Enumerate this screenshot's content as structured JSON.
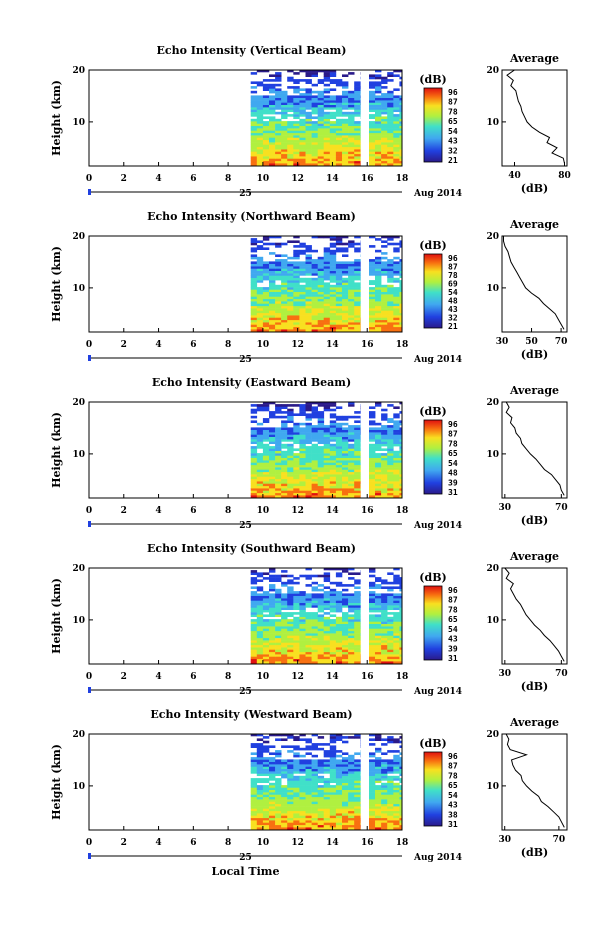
{
  "chart_data": [
    {
      "type": "heatmap",
      "title": "Echo Intensity (Vertical Beam)",
      "ylabel": "Height (km)",
      "xticks": [
        0,
        2,
        4,
        6,
        8,
        10,
        12,
        14,
        16,
        18
      ],
      "yticks": [
        10,
        20
      ],
      "xlim": [
        0,
        18
      ],
      "ylim": [
        1.5,
        20
      ],
      "date_day": "25",
      "date_label": "Aug 2014",
      "colorbar": {
        "label": "(dB)",
        "ticks": [
          96,
          87,
          78,
          65,
          54,
          43,
          32,
          21
        ]
      },
      "avg": {
        "title": "Average",
        "xlabel": "(dB)",
        "xticks": [
          40,
          80
        ],
        "xlim": [
          30,
          82
        ],
        "yticks": [
          10,
          20
        ],
        "profile": [
          [
            80,
            2
          ],
          [
            79,
            3
          ],
          [
            70,
            4
          ],
          [
            74,
            5
          ],
          [
            66,
            6
          ],
          [
            68,
            7
          ],
          [
            60,
            8
          ],
          [
            54,
            9
          ],
          [
            50,
            10
          ],
          [
            48,
            11
          ],
          [
            46,
            12
          ],
          [
            45,
            13
          ],
          [
            43,
            14
          ],
          [
            42,
            15
          ],
          [
            41,
            16
          ],
          [
            37,
            17
          ],
          [
            39,
            18
          ],
          [
            34,
            19
          ],
          [
            40,
            20
          ]
        ]
      }
    },
    {
      "type": "heatmap",
      "title": "Echo Intensity (Northward Beam)",
      "ylabel": "Height (km)",
      "xticks": [
        0,
        2,
        4,
        6,
        8,
        10,
        12,
        14,
        16,
        18
      ],
      "yticks": [
        10,
        20
      ],
      "xlim": [
        0,
        18
      ],
      "ylim": [
        1.5,
        20
      ],
      "date_day": "25",
      "date_label": "Aug 2014",
      "colorbar": {
        "label": "(dB)",
        "ticks": [
          96,
          87,
          78,
          69,
          54,
          48,
          43,
          32,
          21
        ]
      },
      "avg": {
        "title": "Average",
        "xlabel": "(dB)",
        "xticks": [
          30,
          50,
          70
        ],
        "xlim": [
          30,
          74
        ],
        "yticks": [
          10,
          20
        ],
        "profile": [
          [
            72,
            2
          ],
          [
            70,
            3
          ],
          [
            68,
            4
          ],
          [
            66,
            5
          ],
          [
            62,
            6
          ],
          [
            58,
            7
          ],
          [
            55,
            8
          ],
          [
            50,
            9
          ],
          [
            46,
            10
          ],
          [
            44,
            11
          ],
          [
            42,
            12
          ],
          [
            40,
            13
          ],
          [
            38,
            14
          ],
          [
            36,
            15
          ],
          [
            35,
            16
          ],
          [
            34,
            17
          ],
          [
            32,
            18
          ],
          [
            31,
            19
          ],
          [
            31,
            20
          ]
        ]
      }
    },
    {
      "type": "heatmap",
      "title": "Echo Intensity (Eastward Beam)",
      "ylabel": "Height (km)",
      "xticks": [
        0,
        2,
        4,
        6,
        8,
        10,
        12,
        14,
        16,
        18
      ],
      "yticks": [
        10,
        20
      ],
      "xlim": [
        0,
        18
      ],
      "ylim": [
        1.5,
        20
      ],
      "date_day": "25",
      "date_label": "Aug 2014",
      "colorbar": {
        "label": "(dB)",
        "ticks": [
          96,
          87,
          78,
          65,
          54,
          48,
          39,
          31
        ]
      },
      "avg": {
        "title": "Average",
        "xlabel": "(dB)",
        "xticks": [
          30,
          70
        ],
        "xlim": [
          28,
          74
        ],
        "yticks": [
          10,
          20
        ],
        "profile": [
          [
            72,
            2
          ],
          [
            70,
            3
          ],
          [
            69,
            4
          ],
          [
            66,
            5
          ],
          [
            63,
            6
          ],
          [
            58,
            7
          ],
          [
            55,
            8
          ],
          [
            52,
            9
          ],
          [
            48,
            10
          ],
          [
            45,
            11
          ],
          [
            42,
            12
          ],
          [
            41,
            13
          ],
          [
            38,
            14
          ],
          [
            37,
            15
          ],
          [
            34,
            16
          ],
          [
            35,
            17
          ],
          [
            31,
            18
          ],
          [
            33,
            19
          ],
          [
            31,
            20
          ]
        ]
      }
    },
    {
      "type": "heatmap",
      "title": "Echo Intensity (Southward Beam)",
      "ylabel": "Height (km)",
      "xticks": [
        0,
        2,
        4,
        6,
        8,
        10,
        12,
        14,
        16,
        18
      ],
      "yticks": [
        10,
        20
      ],
      "xlim": [
        0,
        18
      ],
      "ylim": [
        1.5,
        20
      ],
      "date_day": "25",
      "date_label": "Aug 2014",
      "colorbar": {
        "label": "(dB)",
        "ticks": [
          96,
          87,
          78,
          65,
          54,
          43,
          39,
          31
        ]
      },
      "avg": {
        "title": "Average",
        "xlabel": "(dB)",
        "xticks": [
          30,
          70
        ],
        "xlim": [
          28,
          74
        ],
        "yticks": [
          10,
          20
        ],
        "profile": [
          [
            72,
            2
          ],
          [
            70,
            3
          ],
          [
            68,
            4
          ],
          [
            65,
            5
          ],
          [
            62,
            6
          ],
          [
            58,
            7
          ],
          [
            55,
            8
          ],
          [
            51,
            9
          ],
          [
            48,
            10
          ],
          [
            45,
            11
          ],
          [
            43,
            12
          ],
          [
            41,
            13
          ],
          [
            38,
            14
          ],
          [
            36,
            15
          ],
          [
            34,
            16
          ],
          [
            36,
            17
          ],
          [
            31,
            18
          ],
          [
            33,
            19
          ],
          [
            30,
            20
          ]
        ]
      }
    },
    {
      "type": "heatmap",
      "title": "Echo Intensity (Westward Beam)",
      "ylabel": "Height (km)",
      "xlabel": "Local Time",
      "xticks": [
        0,
        2,
        4,
        6,
        8,
        10,
        12,
        14,
        16,
        18
      ],
      "yticks": [
        10,
        20
      ],
      "xlim": [
        0,
        18
      ],
      "ylim": [
        1.5,
        20
      ],
      "date_day": "25",
      "date_label": "Aug 2014",
      "colorbar": {
        "label": "(dB)",
        "ticks": [
          96,
          87,
          78,
          65,
          54,
          43,
          38,
          31
        ]
      },
      "avg": {
        "title": "Average",
        "xlabel": "(dB)",
        "xticks": [
          30,
          70
        ],
        "xlim": [
          28,
          76
        ],
        "yticks": [
          10,
          20
        ],
        "profile": [
          [
            74,
            2
          ],
          [
            72,
            3
          ],
          [
            70,
            4
          ],
          [
            66,
            5
          ],
          [
            62,
            6
          ],
          [
            57,
            7
          ],
          [
            55,
            8
          ],
          [
            50,
            9
          ],
          [
            46,
            10
          ],
          [
            43,
            11
          ],
          [
            42,
            12
          ],
          [
            38,
            13
          ],
          [
            36,
            14
          ],
          [
            35,
            15
          ],
          [
            46,
            16
          ],
          [
            34,
            17
          ],
          [
            32,
            18
          ],
          [
            33,
            19
          ],
          [
            31,
            20
          ]
        ]
      }
    }
  ]
}
